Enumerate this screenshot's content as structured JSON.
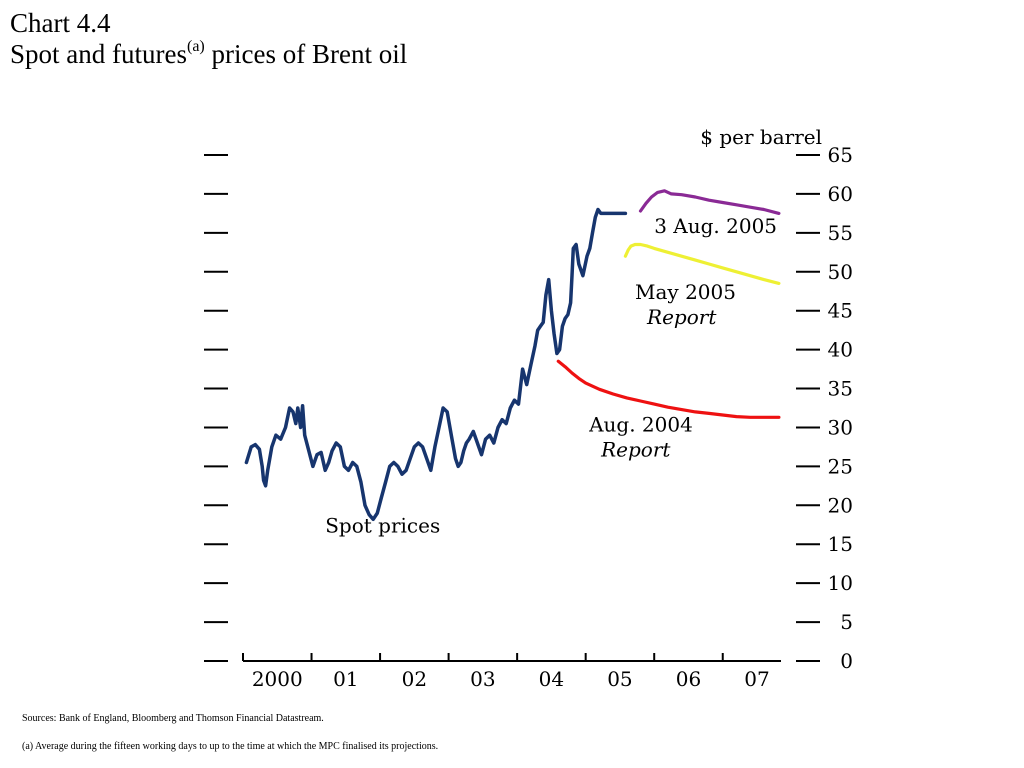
{
  "header": {
    "chart_number": "Chart 4.4",
    "title_main": "Spot and futures",
    "title_note": "(a)",
    "title_rest": " prices of Brent oil"
  },
  "footer": {
    "sources": "Sources:  Bank of England, Bloomberg and Thomson Financial Datastream.",
    "note": "(a)   Average during the fifteen working days to up to the time at which the MPC finalised its projections."
  },
  "colors": {
    "spot": "#17356e",
    "aug2004": "#ee1111",
    "may2005": "#eef034",
    "aug2005": "#8a2a95",
    "axis": "#000000"
  },
  "chart_data": {
    "type": "line",
    "ylabel": "$ per barrel",
    "ylim": [
      0,
      65
    ],
    "yticks": [
      0,
      5,
      10,
      15,
      20,
      25,
      30,
      35,
      40,
      45,
      50,
      55,
      60,
      65
    ],
    "xlim": [
      2000.0,
      2007.85
    ],
    "xticks": [
      {
        "label": "2000",
        "pos": 2000.5
      },
      {
        "label": "01",
        "pos": 2001.5
      },
      {
        "label": "02",
        "pos": 2002.5
      },
      {
        "label": "03",
        "pos": 2003.5
      },
      {
        "label": "04",
        "pos": 2004.5
      },
      {
        "label": "05",
        "pos": 2005.5
      },
      {
        "label": "06",
        "pos": 2006.5
      },
      {
        "label": "07",
        "pos": 2007.5
      }
    ],
    "series": [
      {
        "name": "Spot prices",
        "color_key": "spot",
        "label_text": [
          "Spot prices"
        ],
        "label_at": [
          2001.2,
          16.5
        ],
        "x": [
          2000.05,
          2000.12,
          2000.18,
          2000.24,
          2000.28,
          2000.3,
          2000.33,
          2000.36,
          2000.42,
          2000.48,
          2000.55,
          2000.62,
          2000.68,
          2000.73,
          2000.77,
          2000.8,
          2000.84,
          2000.87,
          2000.9,
          2000.96,
          2001.02,
          2001.08,
          2001.14,
          2001.2,
          2001.25,
          2001.3,
          2001.36,
          2001.42,
          2001.48,
          2001.54,
          2001.6,
          2001.66,
          2001.72,
          2001.78,
          2001.84,
          2001.9,
          2001.96,
          2002.02,
          2002.08,
          2002.14,
          2002.2,
          2002.26,
          2002.32,
          2002.38,
          2002.44,
          2002.5,
          2002.56,
          2002.62,
          2002.68,
          2002.74,
          2002.8,
          2002.86,
          2002.92,
          2002.98,
          2003.04,
          2003.1,
          2003.14,
          2003.18,
          2003.22,
          2003.26,
          2003.3,
          2003.36,
          2003.42,
          2003.48,
          2003.54,
          2003.6,
          2003.66,
          2003.72,
          2003.78,
          2003.84,
          2003.9,
          2003.96,
          2004.02,
          2004.08,
          2004.14,
          2004.2,
          2004.26,
          2004.3,
          2004.34,
          2004.38,
          2004.42,
          2004.46,
          2004.5,
          2004.54,
          2004.58,
          2004.62,
          2004.66,
          2004.7,
          2004.74,
          2004.78,
          2004.8,
          2004.82,
          2004.86,
          2004.9,
          2004.96,
          2005.02,
          2005.06,
          2005.1,
          2005.14,
          2005.18,
          2005.22,
          2005.26,
          2005.3,
          2005.34,
          2005.38,
          2005.42,
          2005.46,
          2005.5,
          2005.54,
          2005.58
        ],
        "y": [
          25.5,
          27.5,
          27.8,
          27.2,
          25.0,
          23.2,
          22.5,
          24.5,
          27.5,
          29.0,
          28.5,
          30.0,
          32.5,
          32.0,
          30.5,
          32.5,
          30.0,
          32.8,
          29.0,
          27.0,
          25.0,
          26.5,
          26.8,
          24.5,
          25.5,
          27.0,
          28.0,
          27.5,
          25.0,
          24.5,
          25.5,
          25.0,
          23.0,
          20.0,
          18.8,
          18.2,
          19.0,
          21.0,
          23.0,
          25.0,
          25.5,
          25.0,
          24.0,
          24.5,
          26.0,
          27.5,
          28.0,
          27.5,
          26.0,
          24.5,
          27.5,
          30.0,
          32.5,
          32.0,
          29.0,
          26.0,
          25.0,
          25.5,
          27.0,
          28.0,
          28.5,
          29.5,
          28.0,
          26.5,
          28.5,
          29.0,
          28.0,
          30.0,
          31.0,
          30.5,
          32.5,
          33.5,
          33.0,
          37.5,
          35.5,
          38.0,
          40.5,
          42.5,
          43.0,
          43.5,
          47.0,
          49.0,
          45.0,
          42.0,
          39.5,
          40.0,
          43.0,
          44.0,
          44.5,
          46.0,
          49.5,
          53.0,
          53.5,
          51.0,
          49.5,
          52.0,
          53.0,
          55.0,
          57.0,
          58.0,
          57.5,
          57.5,
          57.5,
          57.5,
          57.5,
          57.5,
          57.5,
          57.5,
          57.5,
          57.5
        ]
      },
      {
        "name": "Aug. 2004 Report",
        "color_key": "aug2004",
        "label_text": [
          "Aug. 2004",
          "Report"
        ],
        "label_at": [
          2005.05,
          29.5
        ],
        "x": [
          2004.6,
          2004.7,
          2004.8,
          2004.9,
          2005.0,
          2005.2,
          2005.4,
          2005.6,
          2005.8,
          2006.0,
          2006.2,
          2006.4,
          2006.6,
          2006.8,
          2007.0,
          2007.2,
          2007.4,
          2007.6,
          2007.82
        ],
        "y": [
          38.5,
          37.8,
          37.0,
          36.3,
          35.7,
          34.9,
          34.3,
          33.8,
          33.4,
          33.0,
          32.6,
          32.3,
          32.0,
          31.8,
          31.6,
          31.4,
          31.3,
          31.3,
          31.3
        ]
      },
      {
        "name": "May 2005 Report",
        "color_key": "may2005",
        "label_text": [
          "May 2005",
          "Report"
        ],
        "label_at": [
          2005.72,
          46.5
        ],
        "x": [
          2005.58,
          2005.62,
          2005.66,
          2005.72,
          2005.8,
          2005.9,
          2006.0,
          2006.2,
          2006.4,
          2006.6,
          2006.8,
          2007.0,
          2007.2,
          2007.4,
          2007.6,
          2007.82
        ],
        "y": [
          52.0,
          52.8,
          53.3,
          53.5,
          53.5,
          53.3,
          53.0,
          52.5,
          52.0,
          51.5,
          51.0,
          50.5,
          50.0,
          49.5,
          49.0,
          48.5
        ]
      },
      {
        "name": "3 Aug. 2005",
        "color_key": "aug2005",
        "label_text": [
          "3 Aug. 2005"
        ],
        "label_at": [
          2006.0,
          55.0
        ],
        "x": [
          2005.8,
          2005.88,
          2005.96,
          2006.05,
          2006.15,
          2006.25,
          2006.4,
          2006.6,
          2006.8,
          2007.0,
          2007.2,
          2007.4,
          2007.6,
          2007.82
        ],
        "y": [
          57.8,
          58.8,
          59.6,
          60.2,
          60.4,
          60.0,
          59.9,
          59.6,
          59.2,
          58.9,
          58.6,
          58.3,
          58.0,
          57.5
        ]
      }
    ]
  }
}
